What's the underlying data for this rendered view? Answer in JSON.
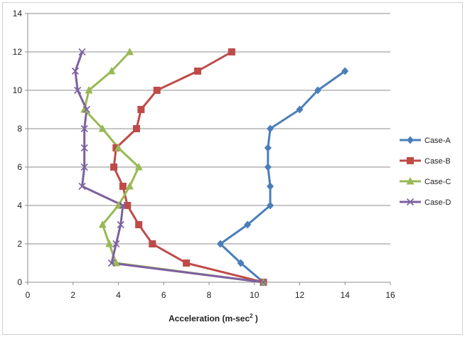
{
  "chart_data": {
    "type": "line",
    "xlabel": "Acceleration (m-sec",
    "xlabel_superscript": "2",
    "xlabel_suffix": " )",
    "ylabel": "",
    "xlim": [
      0,
      16
    ],
    "ylim": [
      0,
      14
    ],
    "x_ticks": [
      0,
      2,
      4,
      6,
      8,
      10,
      12,
      14,
      16
    ],
    "y_ticks": [
      0,
      2,
      4,
      6,
      8,
      10,
      12,
      14
    ],
    "grid": "horizontal",
    "legend": "right",
    "y": [
      0,
      1,
      2,
      3,
      4,
      5,
      6,
      7,
      8,
      9,
      10,
      11,
      12
    ],
    "series": [
      {
        "name": "Case-A",
        "color": "#4a7ebb",
        "marker": "diamond",
        "x": [
          10.4,
          9.4,
          8.5,
          9.7,
          10.7,
          10.7,
          10.6,
          10.6,
          10.7,
          12.0,
          12.8,
          14.0,
          null
        ]
      },
      {
        "name": "Case-B",
        "color": "#be4b48",
        "marker": "square",
        "x": [
          10.4,
          7.0,
          5.5,
          4.9,
          4.4,
          4.2,
          3.8,
          3.9,
          4.8,
          5.0,
          5.7,
          7.5,
          9.0
        ]
      },
      {
        "name": "Case-C",
        "color": "#98b954",
        "marker": "triangle",
        "x": [
          10.4,
          3.9,
          3.6,
          3.3,
          4.0,
          4.5,
          4.9,
          4.0,
          3.3,
          2.5,
          2.7,
          3.7,
          4.5
        ]
      },
      {
        "name": "Case-D",
        "color": "#7d60a0",
        "marker": "x",
        "x": [
          10.4,
          3.7,
          3.9,
          4.1,
          4.2,
          2.4,
          2.5,
          2.5,
          2.5,
          2.6,
          2.2,
          2.1,
          2.4
        ]
      }
    ]
  }
}
